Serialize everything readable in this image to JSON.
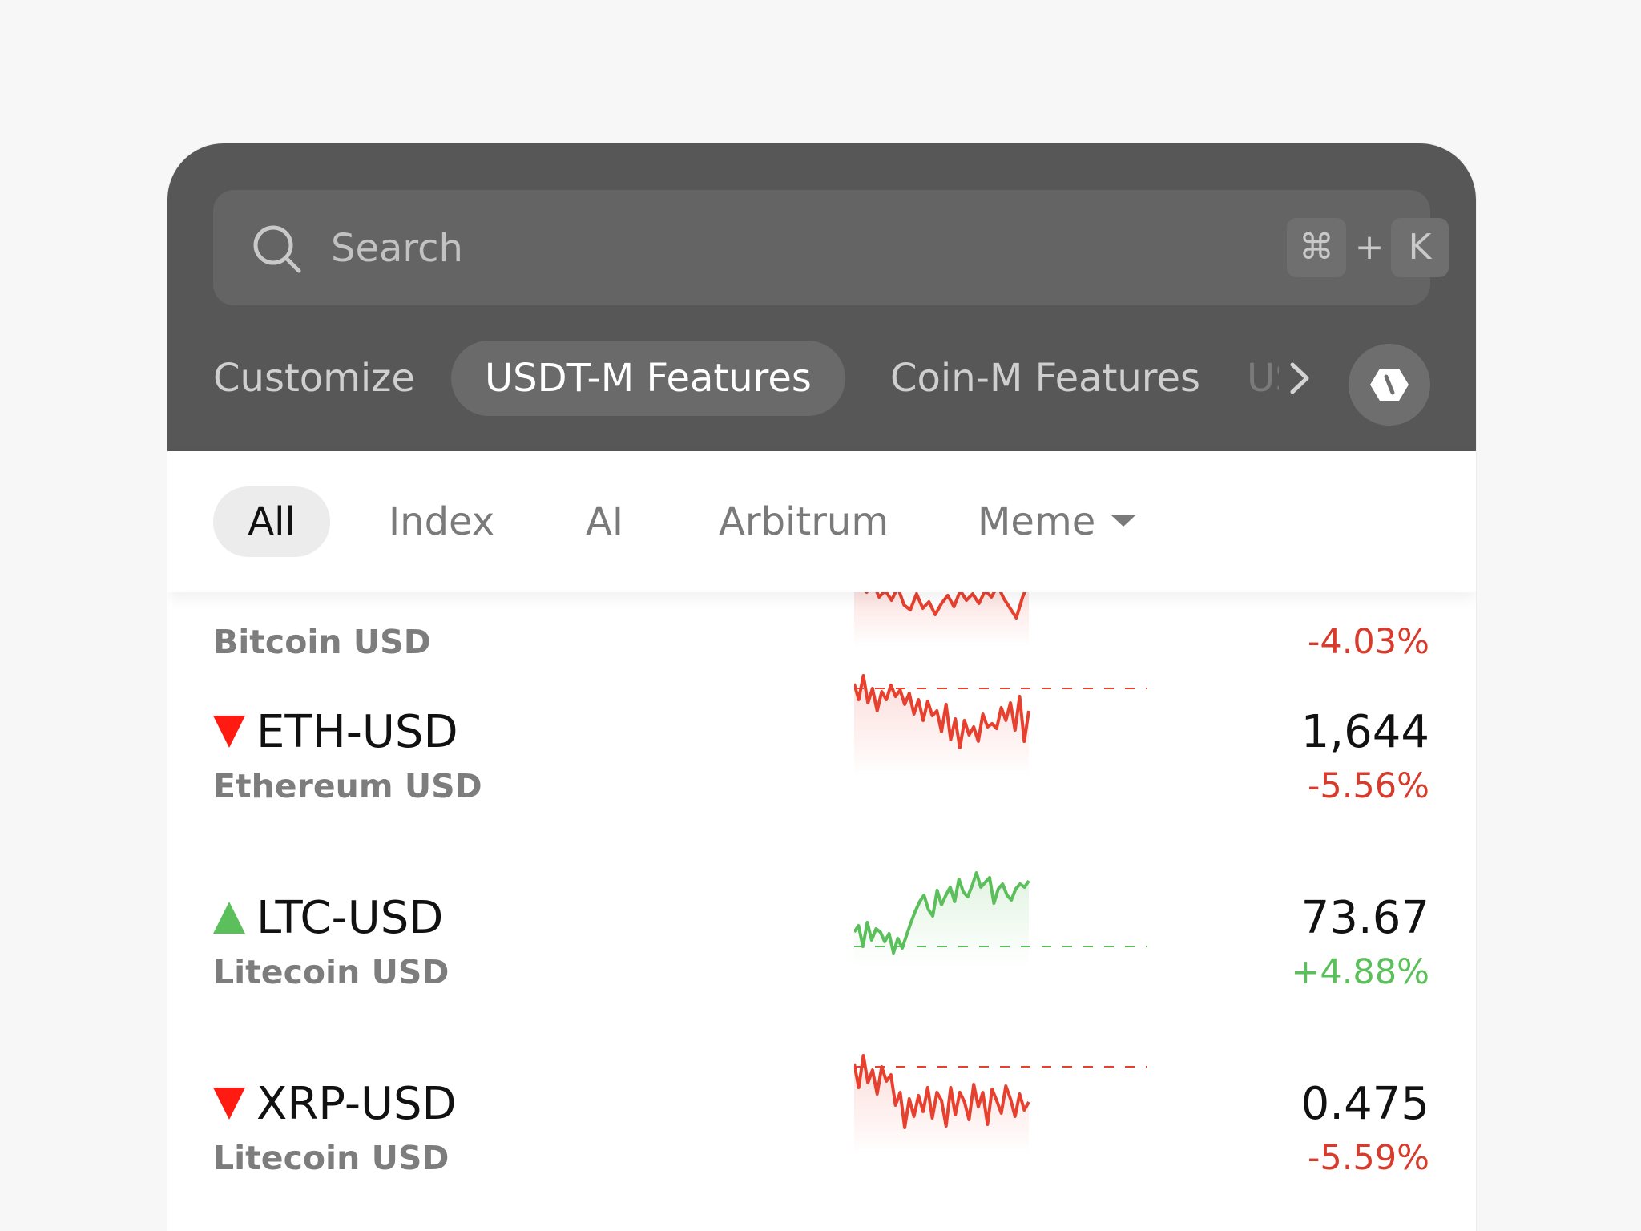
{
  "search": {
    "placeholder": "Search",
    "shortcut_cmd": "⌘",
    "shortcut_plus": "+",
    "shortcut_key": "K"
  },
  "tabs": [
    {
      "label": "Customize",
      "active": false
    },
    {
      "label": "USDT-M Features",
      "active": true
    },
    {
      "label": "Coin-M Features",
      "active": false
    },
    {
      "label": "US",
      "active": false
    }
  ],
  "filters": [
    {
      "label": "All",
      "active": true
    },
    {
      "label": "Index",
      "active": false
    },
    {
      "label": "AI",
      "active": false
    },
    {
      "label": "Arbitrum",
      "active": false
    },
    {
      "label": "Meme",
      "active": false,
      "dropdown": true
    }
  ],
  "colors": {
    "down": "#e8402f",
    "up": "#5bbf5b",
    "down_text": "#d83a2c",
    "up_text": "#5bbf5b"
  },
  "markets": [
    {
      "symbol": "",
      "name": "Bitcoin USD",
      "price": "",
      "change": "-4.03%",
      "direction": "down",
      "sparkline": [
        62,
        58,
        72,
        60,
        78,
        70,
        82,
        66,
        88,
        94,
        74,
        92,
        84,
        100,
        86,
        76,
        90,
        70,
        82,
        74,
        86,
        70,
        78,
        64,
        80,
        92,
        104,
        78,
        60
      ]
    },
    {
      "symbol": "ETH-USD",
      "name": "Ethereum USD",
      "price": "1,644",
      "change": "-5.56%",
      "direction": "down",
      "sparkline": [
        24,
        44,
        14,
        48,
        30,
        58,
        34,
        44,
        26,
        40,
        32,
        50,
        36,
        62,
        44,
        70,
        46,
        64,
        58,
        84,
        50,
        94,
        68,
        104,
        70,
        88,
        78,
        96,
        62,
        78,
        74,
        80,
        54,
        70,
        48,
        82,
        40,
        96,
        58
      ]
    },
    {
      "symbol": "LTC-USD",
      "name": "Litecoin USD",
      "price": "73.67",
      "change": "+4.88%",
      "direction": "up",
      "sparkline": [
        96,
        88,
        114,
        84,
        106,
        92,
        96,
        108,
        98,
        122,
        104,
        116,
        100,
        84,
        70,
        58,
        50,
        68,
        76,
        44,
        62,
        50,
        40,
        58,
        30,
        46,
        52,
        38,
        22,
        40,
        34,
        28,
        60,
        42,
        36,
        50,
        56,
        42,
        36,
        40,
        32
      ]
    },
    {
      "symbol": "XRP-USD",
      "name": "Litecoin USD",
      "price": "0.475",
      "change": "-5.59%",
      "direction": "down",
      "sparkline": [
        26,
        56,
        16,
        50,
        34,
        64,
        30,
        48,
        40,
        78,
        62,
        106,
        70,
        92,
        66,
        86,
        56,
        94,
        62,
        72,
        104,
        56,
        90,
        62,
        74,
        96,
        52,
        80,
        62,
        102,
        58,
        72,
        88,
        54,
        70,
        92,
        64,
        84,
        74
      ]
    }
  ]
}
